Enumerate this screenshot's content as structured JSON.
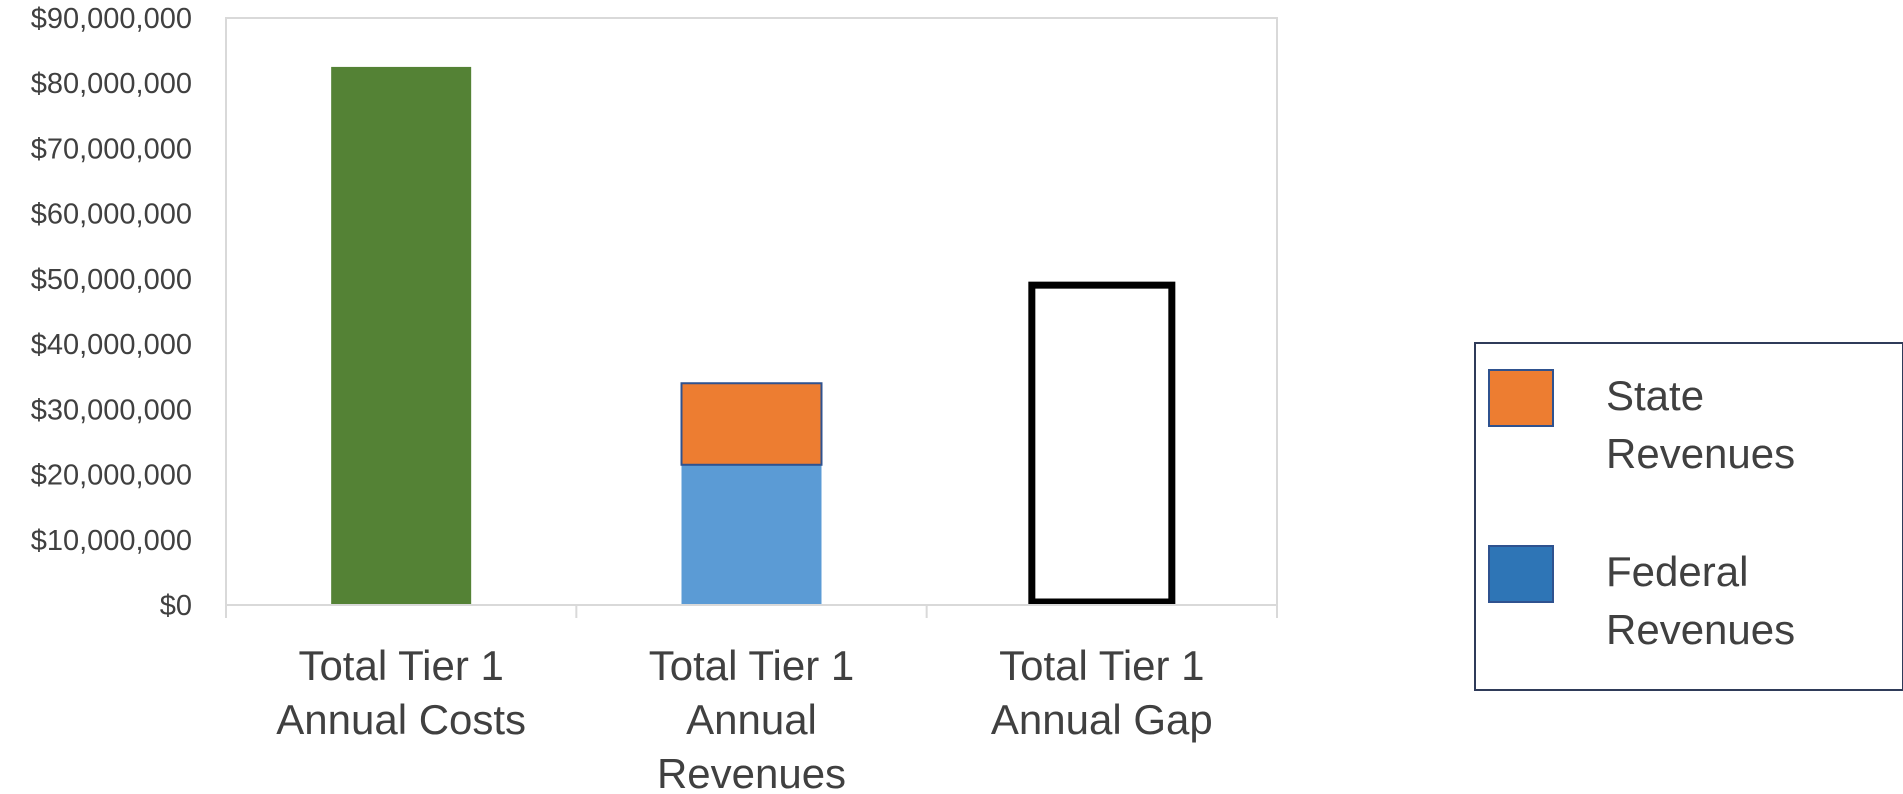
{
  "chart_data": {
    "type": "bar",
    "stacked": true,
    "categories": [
      [
        "Total Tier 1",
        "Annual Costs"
      ],
      [
        "Total Tier 1",
        "Annual",
        "Revenues"
      ],
      [
        "Total Tier 1",
        "Annual Gap"
      ]
    ],
    "ylim": [
      0,
      90000000
    ],
    "yticks": [
      "$0",
      "$10,000,000",
      "$20,000,000",
      "$30,000,000",
      "$40,000,000",
      "$50,000,000",
      "$60,000,000",
      "$70,000,000",
      "$80,000,000",
      "$90,000,000"
    ],
    "grid": false,
    "legend_position": "right",
    "bars": [
      {
        "category_index": 0,
        "base": 0,
        "value": 82500000,
        "color": "#548235",
        "style": "filled",
        "legend": false
      },
      {
        "category_index": 1,
        "base": 0,
        "value": 21500000,
        "color": "#5B9BD5",
        "style": "filled",
        "legend": false
      },
      {
        "category_index": 1,
        "base": 21500000,
        "value": 12500000,
        "color": "#ED7D31",
        "style": "outlined-fill",
        "legend": false
      },
      {
        "category_index": 2,
        "base": 0,
        "value": 49500000,
        "color": "#000000",
        "style": "outline",
        "legend": false
      }
    ],
    "legend": [
      {
        "label": [
          "State",
          "Revenues"
        ],
        "color": "#ED7D31"
      },
      {
        "label": [
          "Federal",
          "Revenues"
        ],
        "color": "#2E75B6"
      }
    ],
    "colors": {
      "axis": "#D9D9D9",
      "text": "#404040",
      "legend_border": "#2F3B59",
      "swatch_border": "#2F528F"
    }
  }
}
